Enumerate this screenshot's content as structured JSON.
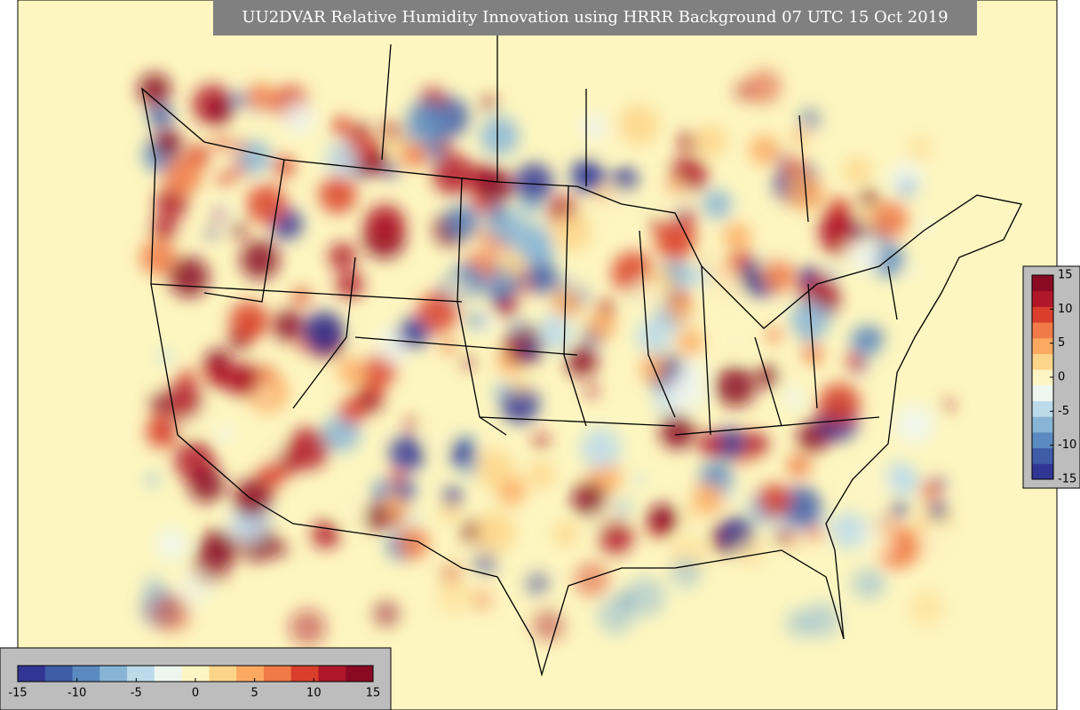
{
  "title": "UU2DVAR Relative Humidity Innovation using HRRR Background 07 UTC 15 Oct 2019",
  "colorbar": {
    "range": [
      -15,
      15
    ],
    "ticks": [
      -15,
      -10,
      -5,
      0,
      5,
      10,
      15
    ],
    "colors": [
      "#313695",
      "#3f5ca8",
      "#5a8ac0",
      "#88b5d6",
      "#bcdbea",
      "#eef6f0",
      "#fdf5c4",
      "#fdd58a",
      "#fca962",
      "#f07a48",
      "#d93f2c",
      "#b1172a",
      "#8a0a24"
    ]
  }
}
